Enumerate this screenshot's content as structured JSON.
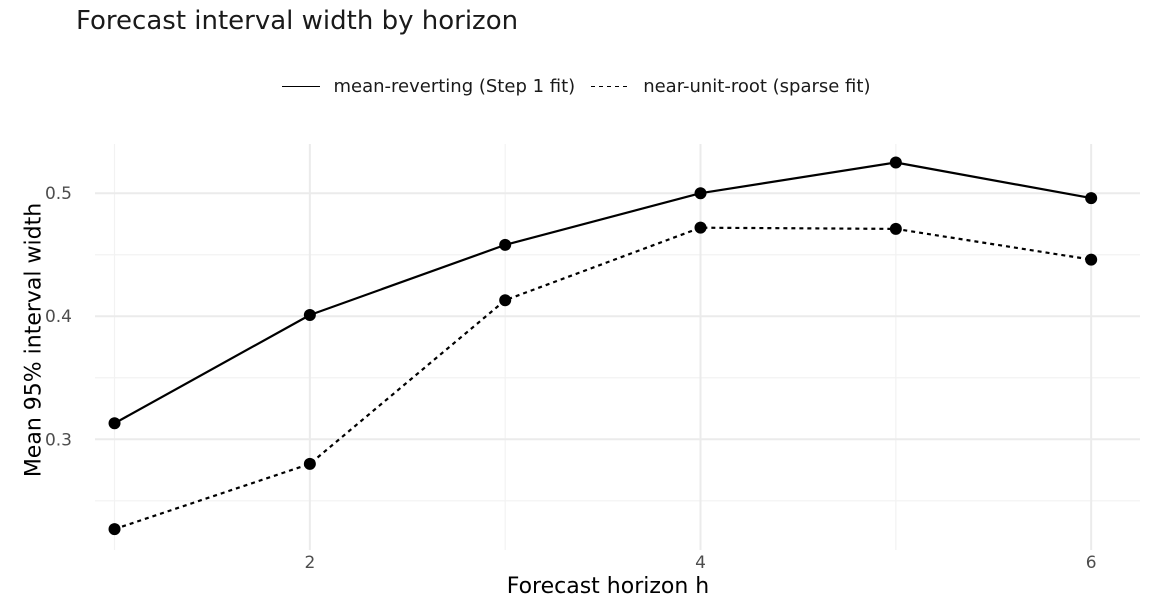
{
  "chart_data": {
    "type": "line",
    "title": "Forecast interval width by horizon",
    "xlabel": "Forecast horizon h",
    "ylabel": "Mean 95% interval width",
    "x": [
      1,
      2,
      3,
      4,
      5,
      6
    ],
    "xlim": [
      0.9,
      6.25
    ],
    "ylim": [
      0.21,
      0.54
    ],
    "xticks": [
      2,
      4,
      6
    ],
    "yticks": [
      0.3,
      0.4,
      0.5
    ],
    "ytick_labels": [
      "0.3",
      "0.4",
      "0.5"
    ],
    "grid": true,
    "legend_position": "top",
    "series": [
      {
        "name": "mean-reverting (Step 1 fit)",
        "linestyle": "solid",
        "color": "#000000",
        "values": [
          0.313,
          0.401,
          0.458,
          0.5,
          0.525,
          0.496
        ]
      },
      {
        "name": "near-unit-root (sparse fit)",
        "linestyle": "dotted",
        "color": "#000000",
        "values": [
          0.227,
          0.28,
          0.413,
          0.472,
          0.471,
          0.446
        ]
      }
    ]
  }
}
